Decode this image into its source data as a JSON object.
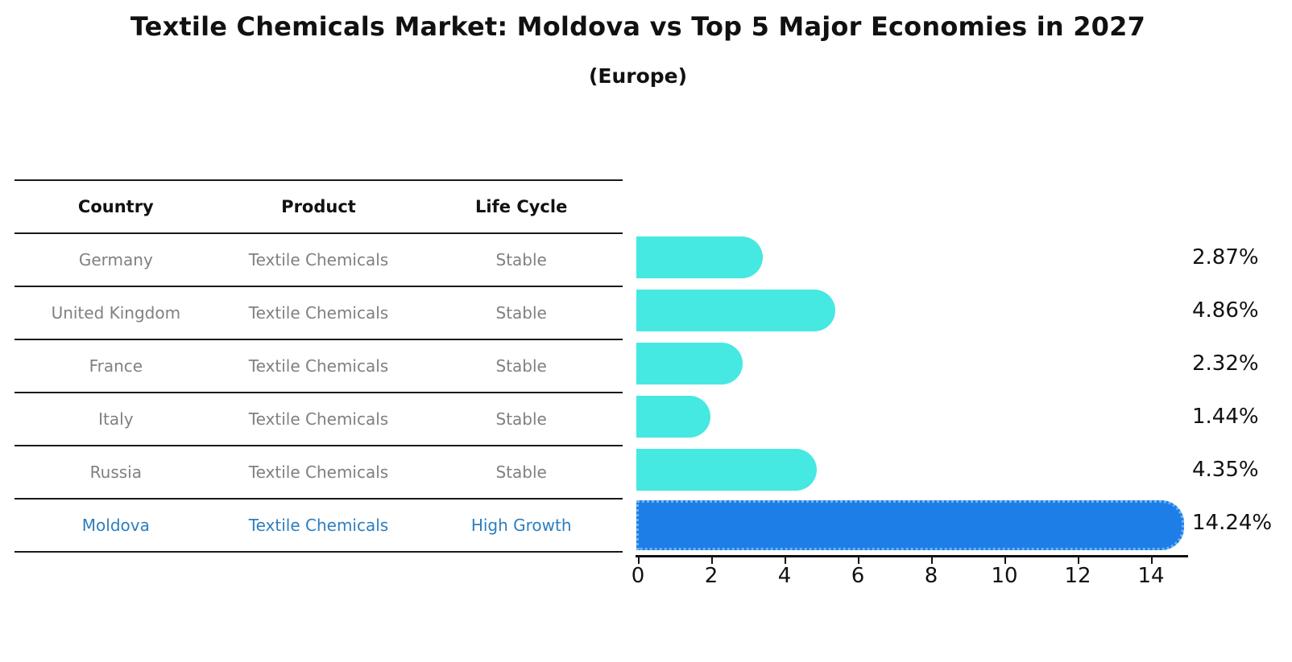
{
  "title": "Textile Chemicals Market: Moldova vs Top 5 Major Economies in 2027",
  "subtitle": "(Europe)",
  "colors": {
    "bar_default": "#46e8e2",
    "bar_highlight": "#1e7ee8",
    "bar_highlight_border": "#6fb3f2",
    "table_line": "#1a1a1a",
    "row_text": "#808080",
    "highlight_text": "#2e7ebe",
    "label_text": "#111111"
  },
  "table": {
    "headers": [
      "Country",
      "Product",
      "Life Cycle"
    ],
    "rows": [
      {
        "country": "Germany",
        "product": "Textile Chemicals",
        "life_cycle": "Stable",
        "highlight": false
      },
      {
        "country": "United Kingdom",
        "product": "Textile Chemicals",
        "life_cycle": "Stable",
        "highlight": false
      },
      {
        "country": "France",
        "product": "Textile Chemicals",
        "life_cycle": "Stable",
        "highlight": false
      },
      {
        "country": "Italy",
        "product": "Textile Chemicals",
        "life_cycle": "Stable",
        "highlight": false
      },
      {
        "country": "Russia",
        "product": "Textile Chemicals",
        "life_cycle": "Stable",
        "highlight": false
      },
      {
        "country": "Moldova",
        "product": "Textile Chemicals",
        "life_cycle": "High Growth",
        "highlight": true
      }
    ]
  },
  "chart_data": {
    "type": "bar",
    "orientation": "horizontal",
    "title": "Textile Chemicals Market: Moldova vs Top 5 Major Economies in 2027 (Europe)",
    "categories": [
      "Germany",
      "United Kingdom",
      "France",
      "Italy",
      "Russia",
      "Moldova"
    ],
    "values": [
      2.87,
      4.86,
      2.32,
      1.44,
      4.35,
      14.24
    ],
    "value_labels": [
      "2.87%",
      "4.86%",
      "2.32%",
      "1.44%",
      "4.35%",
      "14.24%"
    ],
    "highlight_index": 5,
    "xlabel": "",
    "ylabel": "",
    "xlim": [
      0,
      15
    ],
    "xticks": [
      0,
      2,
      4,
      6,
      8,
      10,
      12,
      14
    ],
    "grid": false,
    "legend": false
  }
}
